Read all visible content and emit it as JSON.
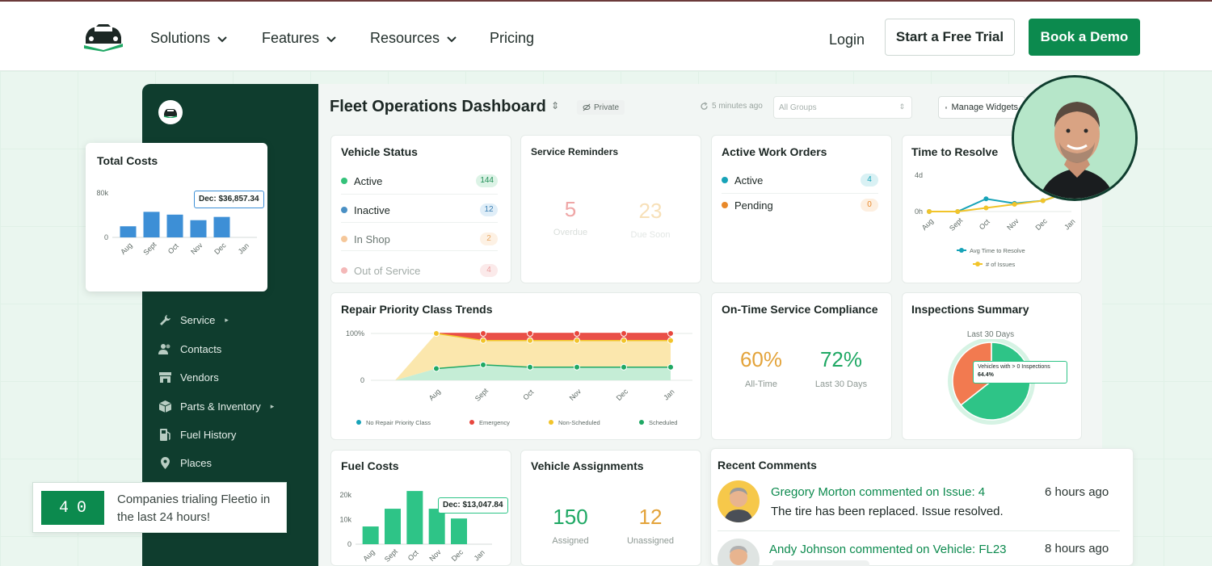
{
  "nav": {
    "items": [
      "Solutions",
      "Features",
      "Resources",
      "Pricing"
    ],
    "login": "Login",
    "trial": "Start a Free Trial",
    "demo": "Book a Demo"
  },
  "sidebar": {
    "items": [
      {
        "label": "Service",
        "icon": "wrench-icon",
        "caret": "▸"
      },
      {
        "label": "Contacts",
        "icon": "contacts-icon"
      },
      {
        "label": "Vendors",
        "icon": "store-icon"
      },
      {
        "label": "Parts & Inventory",
        "icon": "box-icon",
        "caret": "▸"
      },
      {
        "label": "Fuel History",
        "icon": "fuel-icon"
      },
      {
        "label": "Places",
        "icon": "pin-icon"
      }
    ]
  },
  "dashboard": {
    "title": "Fleet Operations Dashboard",
    "privacy": "Private",
    "updated": "5 minutes ago",
    "groups_placeholder": "All Groups",
    "manage": "Manage Widgets"
  },
  "vehicle_status": {
    "title": "Vehicle Status",
    "rows": [
      {
        "label": "Active",
        "count": "144",
        "color": "#34c27a"
      },
      {
        "label": "Inactive",
        "count": "12",
        "color": "#4a90c4"
      },
      {
        "label": "In Shop",
        "count": "2",
        "color": "#f2a04a"
      },
      {
        "label": "Out of Service",
        "count": "4",
        "color": "#e56b6b"
      }
    ]
  },
  "service_reminders": {
    "title": "Service Reminders",
    "overdue": "5",
    "overdue_label": "Overdue",
    "due_soon": "23",
    "due_soon_label": "Due Soon"
  },
  "work_orders": {
    "title": "Active Work Orders",
    "rows": [
      {
        "label": "Active",
        "count": "4",
        "color": "#17a3b8"
      },
      {
        "label": "Pending",
        "count": "0",
        "color": "#e8892a"
      }
    ]
  },
  "time_to_resolve": {
    "title": "Time to Resolve",
    "legend": [
      "Avg Time to Resolve",
      "# of Issues"
    ]
  },
  "repair_priority": {
    "title": "Repair Priority Class Trends",
    "legend": [
      "No Repair Priority Class",
      "Emergency",
      "Non-Scheduled",
      "Scheduled"
    ]
  },
  "compliance": {
    "title": "On-Time Service Compliance",
    "all_time": "60%",
    "all_time_label": "All-Time",
    "last30": "72%",
    "last30_label": "Last 30 Days"
  },
  "inspections": {
    "title": "Inspections Summary",
    "subtitle": "Last 30 Days",
    "tooltip_label": "Vehicles with > 0 Inspections",
    "tooltip_value": "64.4%"
  },
  "fuel_costs": {
    "title": "Fuel Costs",
    "tooltip": "Dec: $13,047.84"
  },
  "assignments": {
    "title": "Vehicle Assignments",
    "assigned": "150",
    "assigned_label": "Assigned",
    "unassigned": "12",
    "unassigned_label": "Unassigned"
  },
  "comments": {
    "title": "Recent Comments",
    "items": [
      {
        "name": "Gregory Morton commented on Issue: 4",
        "time": "6 hours ago",
        "body": "The tire has been replaced. Issue resolved."
      },
      {
        "name": "Andy Johnson commented on Vehicle: FL23",
        "time": "8 hours ago",
        "body": ""
      }
    ]
  },
  "total_costs": {
    "title": "Total Costs",
    "tooltip": "Dec: $36,857.34"
  },
  "ticker": {
    "count": "40",
    "text": "Companies trialing Fleetio in the last 24 hours!"
  },
  "chart_data": [
    {
      "type": "bar",
      "title": "Total Costs",
      "categories": [
        "Aug",
        "Sept",
        "Oct",
        "Nov",
        "Dec",
        "Jan"
      ],
      "values": [
        20000,
        46000,
        41000,
        31000,
        36857.34,
        0
      ],
      "yticks": [
        "0",
        "80k"
      ],
      "ylim": [
        0,
        80000
      ],
      "color": "#3d8fd6"
    },
    {
      "type": "line",
      "title": "Time to Resolve",
      "categories": [
        "Aug",
        "Sept",
        "Oct",
        "Nov",
        "Dec",
        "Jan"
      ],
      "yticks": [
        "0h",
        "4d"
      ],
      "ylim": [
        0,
        4
      ],
      "series": [
        {
          "name": "Avg Time to Resolve",
          "values": [
            0,
            0,
            1.4,
            0.9,
            1.2,
            2.2
          ],
          "color": "#17a3b8"
        },
        {
          "name": "# of Issues",
          "values": [
            0,
            0,
            0.4,
            0.8,
            1.2,
            2.2
          ],
          "color": "#f2c42a"
        }
      ]
    },
    {
      "type": "area",
      "title": "Repair Priority Class Trends",
      "categories": [
        "Aug",
        "Sept",
        "Oct",
        "Nov",
        "Dec",
        "Jan"
      ],
      "yticks": [
        "0",
        "100%"
      ],
      "ylim": [
        0,
        100
      ],
      "series": [
        {
          "name": "No Repair Priority Class",
          "values": [
            0,
            0,
            0,
            0,
            0,
            0
          ],
          "color": "#17a3b8"
        },
        {
          "name": "Emergency",
          "values": [
            100,
            100,
            100,
            100,
            100,
            100
          ],
          "color": "#e8473e"
        },
        {
          "name": "Non-Scheduled",
          "values": [
            100,
            85,
            85,
            85,
            85,
            85
          ],
          "color": "#f2c42a"
        },
        {
          "name": "Scheduled",
          "values": [
            25,
            33,
            28,
            28,
            28,
            28
          ],
          "color": "#1fa864"
        }
      ]
    },
    {
      "type": "pie",
      "title": "Inspections Summary",
      "labels": [
        "Vehicles with > 0 Inspections",
        "Other"
      ],
      "values": [
        64.4,
        35.6
      ],
      "colors": [
        "#2ec487",
        "#f27a50"
      ]
    },
    {
      "type": "bar",
      "title": "Fuel Costs",
      "categories": [
        "Aug",
        "Sept",
        "Oct",
        "Nov",
        "Dec",
        "Jan"
      ],
      "values": [
        9000,
        18000,
        27000,
        18000,
        13047.84,
        0
      ],
      "yticks": [
        "0",
        "10k",
        "20k"
      ],
      "ylim": [
        0,
        25000
      ],
      "color": "#2ec487"
    }
  ]
}
